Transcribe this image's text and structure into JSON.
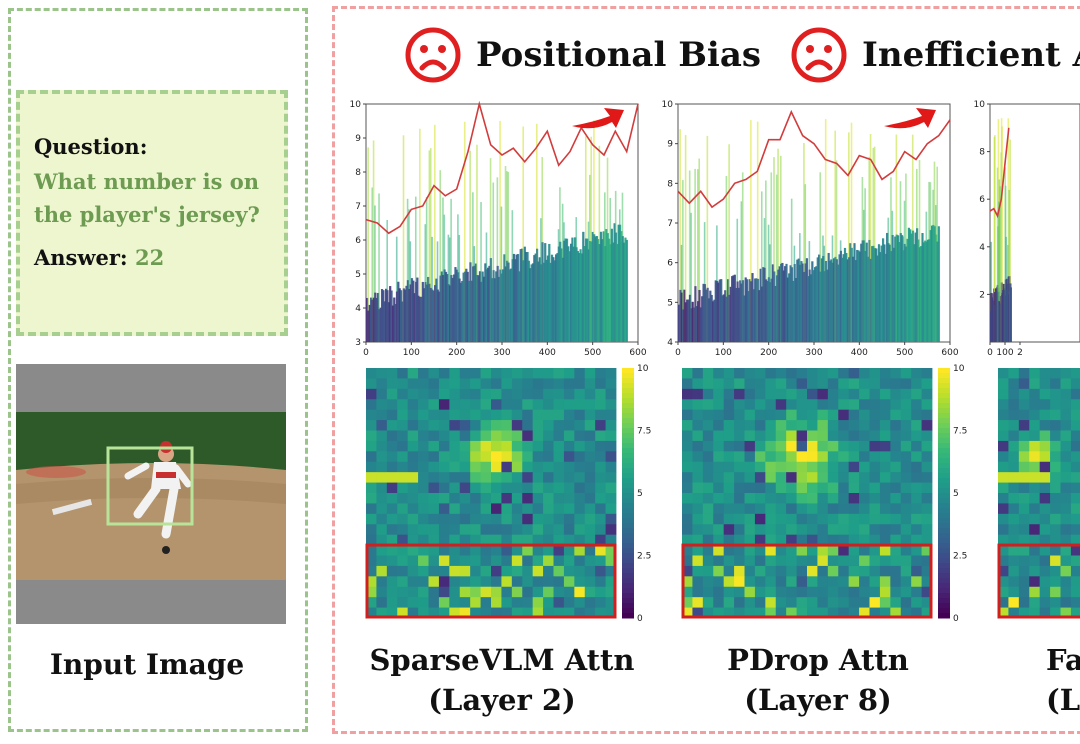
{
  "headers": {
    "positional_bias": "Positional Bias",
    "inefficient": "Inefficient A",
    "emoji_icon": "sad-face-icon"
  },
  "qa": {
    "question_label": "Question:",
    "question_text": "What number is on the player's jersey?",
    "answer_label": "Answer:",
    "answer_value": "22"
  },
  "input_caption": "Input Image",
  "captions": [
    {
      "line1": "SparseVLM Attn",
      "line2": "(Layer 2)"
    },
    {
      "line1": "PDrop Attn",
      "line2": "(Layer 8)"
    },
    {
      "line1": "Fa",
      "line2": "(L"
    }
  ],
  "colors": {
    "green_border": "#9bc48a",
    "red_border": "#f0a0a0",
    "accent_red": "#e02020",
    "answer_green": "#6c9b51",
    "qa_bg": "#eef6cf"
  },
  "chart_data": [
    {
      "type": "bar",
      "name": "SparseVLM attention over tokens",
      "xlim": [
        0,
        600
      ],
      "ylim": [
        3,
        10
      ],
      "xticks": [
        "0",
        "100",
        "200",
        "300",
        "400",
        "500",
        "600"
      ],
      "yticks": [
        "3",
        "4",
        "5",
        "6",
        "7",
        "8",
        "9",
        "10"
      ],
      "line_x": [
        0,
        25,
        50,
        75,
        100,
        125,
        150,
        175,
        200,
        225,
        250,
        275,
        300,
        325,
        350,
        375,
        400,
        425,
        450,
        475,
        500,
        525,
        550,
        575,
        600
      ],
      "line_y": [
        6.6,
        6.5,
        6.2,
        6.4,
        6.9,
        7.0,
        7.6,
        7.3,
        7.5,
        8.6,
        10.0,
        8.8,
        8.5,
        8.7,
        8.3,
        8.7,
        9.2,
        8.2,
        8.6,
        9.3,
        8.8,
        8.5,
        9.2,
        8.6,
        10.0
      ]
    },
    {
      "type": "bar",
      "name": "PDrop attention over tokens",
      "xlim": [
        0,
        600
      ],
      "ylim": [
        4,
        10
      ],
      "xticks": [
        "0",
        "100",
        "200",
        "300",
        "400",
        "500",
        "600"
      ],
      "yticks": [
        "4",
        "5",
        "6",
        "7",
        "8",
        "9",
        "10"
      ],
      "line_x": [
        0,
        25,
        50,
        75,
        100,
        125,
        150,
        175,
        200,
        225,
        250,
        275,
        300,
        325,
        350,
        375,
        400,
        425,
        450,
        475,
        500,
        525,
        550,
        575,
        600
      ],
      "line_y": [
        7.8,
        7.5,
        7.8,
        7.4,
        7.6,
        8.0,
        8.1,
        8.3,
        9.1,
        9.1,
        9.8,
        9.2,
        9.0,
        8.6,
        8.5,
        8.2,
        8.7,
        8.6,
        8.1,
        8.3,
        8.8,
        8.6,
        9.0,
        9.2,
        9.6
      ]
    },
    {
      "type": "bar",
      "name": "Third method attention over tokens (cropped)",
      "xlim": [
        0,
        600
      ],
      "ylim": [
        0,
        10
      ],
      "xticks": [
        "0",
        "100",
        "2"
      ],
      "yticks": [
        "2",
        "4",
        "6",
        "8",
        "10"
      ],
      "line_x": [
        0,
        25,
        50,
        75,
        100,
        125
      ],
      "line_y": [
        5.5,
        5.6,
        5.3,
        6.0,
        7.5,
        9.0
      ]
    },
    {
      "type": "heatmap",
      "name": "SparseVLM spatial attention",
      "grid": [
        24,
        24
      ],
      "colorbar_ticks": [
        "0",
        "2.5",
        "5",
        "7.5",
        "10"
      ],
      "highlight": "bottom rows (red box)"
    },
    {
      "type": "heatmap",
      "name": "PDrop spatial attention",
      "grid": [
        24,
        24
      ],
      "colorbar_ticks": [
        "0",
        "2.5",
        "5",
        "7.5",
        "10"
      ],
      "highlight": "bottom rows (red box)"
    },
    {
      "type": "heatmap",
      "name": "Third method spatial attention (cropped)",
      "grid": [
        24,
        24
      ],
      "highlight": "bottom rows (red box)"
    }
  ]
}
